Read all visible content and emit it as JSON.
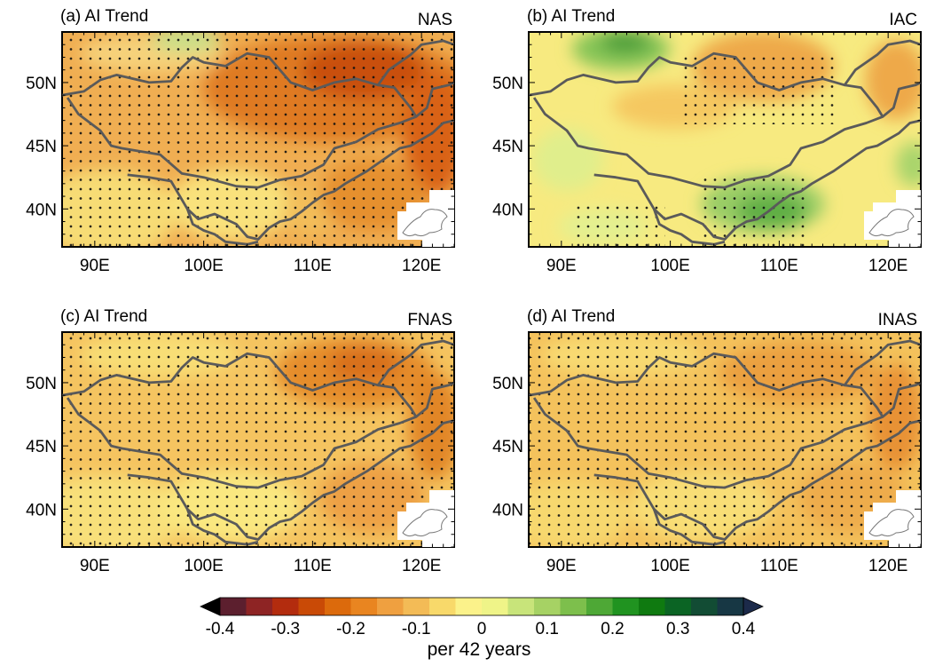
{
  "chart_data": {
    "type": "heatmap",
    "panels": [
      {
        "id": "a",
        "title": "(a) AI Trend",
        "label": "NAS"
      },
      {
        "id": "b",
        "title": "(b) AI Trend",
        "label": "IAC"
      },
      {
        "id": "c",
        "title": "(c)  AI Trend",
        "label": "FNAS"
      },
      {
        "id": "d",
        "title": "(d)  AI Trend",
        "label": "INAS"
      }
    ],
    "x_ticks": [
      {
        "value": 90,
        "label": "90E"
      },
      {
        "value": 100,
        "label": "100E"
      },
      {
        "value": 110,
        "label": "110E"
      },
      {
        "value": 120,
        "label": "120E"
      }
    ],
    "y_ticks": [
      {
        "value": 50,
        "label": "50N"
      },
      {
        "value": 45,
        "label": "45N"
      },
      {
        "value": 40,
        "label": "40N"
      }
    ],
    "xlim": [
      87,
      123
    ],
    "ylim": [
      37,
      54
    ],
    "colorbar": {
      "label": "per 42 years",
      "levels": [
        -0.4,
        -0.35,
        -0.3,
        -0.25,
        -0.2,
        -0.15,
        -0.1,
        -0.05,
        0,
        0.05,
        0.1,
        0.15,
        0.2,
        0.25,
        0.3,
        0.35,
        0.4
      ],
      "tick_labels": [
        "-0.4",
        "-0.3",
        "-0.2",
        "-0.1",
        "0",
        "0.1",
        "0.2",
        "0.3",
        "0.4"
      ],
      "tick_values": [
        -0.4,
        -0.3,
        -0.2,
        -0.1,
        0,
        0.1,
        0.2,
        0.3,
        0.4
      ],
      "colors": [
        "#000000",
        "#5c1f2e",
        "#8e2424",
        "#b32c0e",
        "#c94a06",
        "#dc6a0c",
        "#e98520",
        "#efa040",
        "#f3bb56",
        "#f8d96a",
        "#fbf28a",
        "#eff488",
        "#c8e47a",
        "#a6d264",
        "#7dbf4c",
        "#4ea836",
        "#209320",
        "#0f7a10",
        "#0b6424",
        "#124c34",
        "#173744",
        "#1c2a4a"
      ]
    }
  }
}
